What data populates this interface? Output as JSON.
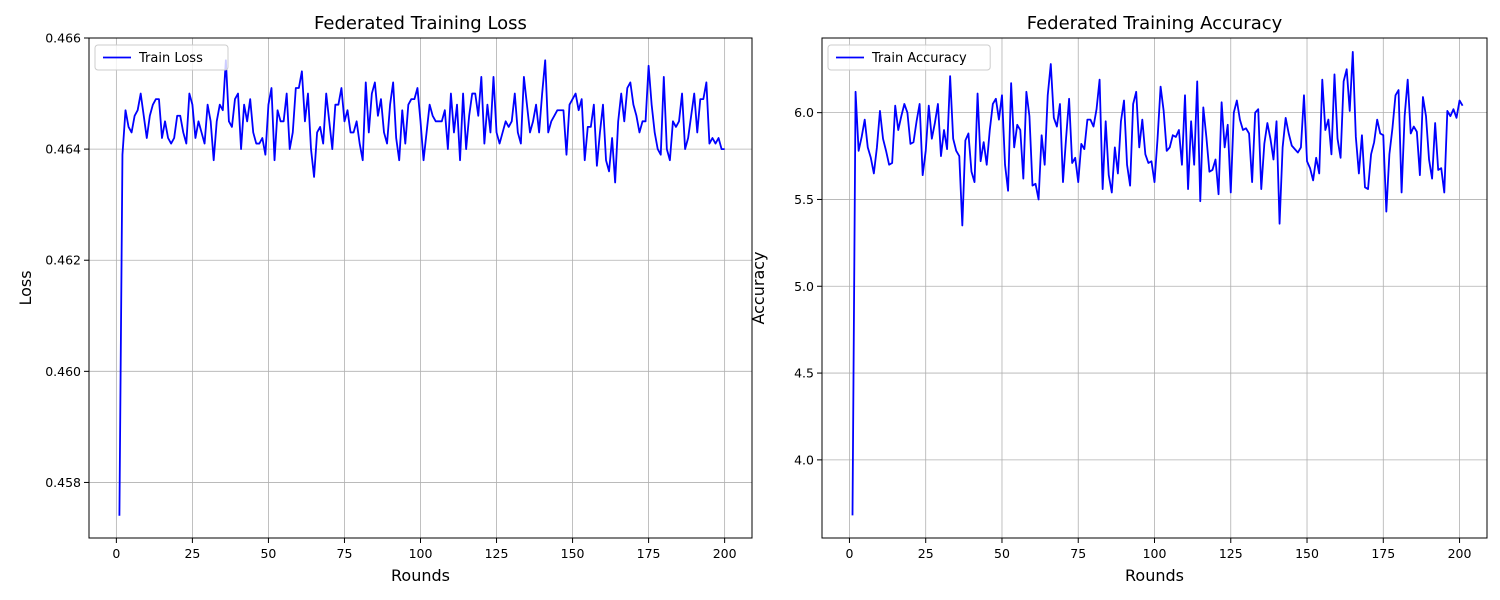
{
  "chart_data": [
    {
      "type": "line",
      "title": "Federated Training Loss",
      "xlabel": "Rounds",
      "ylabel": "Loss",
      "xlim": [
        -9,
        209
      ],
      "ylim": [
        0.457,
        0.466
      ],
      "xticks": [
        0,
        25,
        50,
        75,
        100,
        125,
        150,
        175,
        200
      ],
      "yticks": [
        0.458,
        0.46,
        0.462,
        0.464,
        0.466
      ],
      "ytick_decimals": 3,
      "grid": true,
      "legend_position": "upper-left",
      "x_start": 1,
      "series": [
        {
          "name": "Train Loss",
          "color": "#0000ff",
          "values": [
            0.4574,
            0.4639,
            0.4647,
            0.4644,
            0.4643,
            0.4646,
            0.4647,
            0.465,
            0.4646,
            0.4642,
            0.4646,
            0.4648,
            0.4649,
            0.4649,
            0.4642,
            0.4645,
            0.4642,
            0.4641,
            0.4642,
            0.4646,
            0.4646,
            0.4643,
            0.4641,
            0.465,
            0.4648,
            0.4642,
            0.4645,
            0.4643,
            0.4641,
            0.4648,
            0.4645,
            0.4638,
            0.4645,
            0.4648,
            0.4647,
            0.4656,
            0.4645,
            0.4644,
            0.4649,
            0.465,
            0.464,
            0.4648,
            0.4645,
            0.4649,
            0.4643,
            0.4641,
            0.4641,
            0.4642,
            0.4639,
            0.4648,
            0.4651,
            0.4638,
            0.4647,
            0.4645,
            0.4645,
            0.465,
            0.464,
            0.4643,
            0.4651,
            0.4651,
            0.4654,
            0.4645,
            0.465,
            0.464,
            0.4635,
            0.4643,
            0.4644,
            0.4641,
            0.465,
            0.4645,
            0.464,
            0.4648,
            0.4648,
            0.4651,
            0.4645,
            0.4647,
            0.4643,
            0.4643,
            0.4645,
            0.4641,
            0.4638,
            0.4652,
            0.4643,
            0.465,
            0.4652,
            0.4646,
            0.4649,
            0.4643,
            0.4641,
            0.4648,
            0.4652,
            0.4642,
            0.4638,
            0.4647,
            0.4641,
            0.4648,
            0.4649,
            0.4649,
            0.4651,
            0.4645,
            0.4638,
            0.4643,
            0.4648,
            0.4646,
            0.4645,
            0.4645,
            0.4645,
            0.4647,
            0.464,
            0.465,
            0.4643,
            0.4648,
            0.4638,
            0.465,
            0.464,
            0.4646,
            0.465,
            0.465,
            0.4646,
            0.4653,
            0.4641,
            0.4648,
            0.4643,
            0.4653,
            0.4643,
            0.4641,
            0.4643,
            0.4645,
            0.4644,
            0.4645,
            0.465,
            0.4643,
            0.4641,
            0.4653,
            0.4648,
            0.4643,
            0.4645,
            0.4648,
            0.4643,
            0.465,
            0.4656,
            0.4643,
            0.4645,
            0.4646,
            0.4647,
            0.4647,
            0.4647,
            0.4639,
            0.4648,
            0.4649,
            0.465,
            0.4647,
            0.4649,
            0.4638,
            0.4644,
            0.4644,
            0.4648,
            0.4637,
            0.4643,
            0.4648,
            0.4638,
            0.4636,
            0.4642,
            0.4634,
            0.4645,
            0.465,
            0.4645,
            0.4651,
            0.4652,
            0.4648,
            0.4646,
            0.4643,
            0.4645,
            0.4645,
            0.4655,
            0.4648,
            0.4643,
            0.464,
            0.4639,
            0.4653,
            0.464,
            0.4638,
            0.4645,
            0.4644,
            0.4645,
            0.465,
            0.464,
            0.4642,
            0.4646,
            0.465,
            0.4643,
            0.4649,
            0.4649,
            0.4652,
            0.4641,
            0.4642,
            0.4641,
            0.4642,
            0.464,
            0.464
          ]
        }
      ]
    },
    {
      "type": "line",
      "title": "Federated Training Accuracy",
      "xlabel": "Rounds",
      "ylabel": "Accuracy",
      "xlim": [
        -9,
        209
      ],
      "ylim": [
        3.55,
        6.43
      ],
      "xticks": [
        0,
        25,
        50,
        75,
        100,
        125,
        150,
        175,
        200
      ],
      "yticks": [
        4.0,
        4.5,
        5.0,
        5.5,
        6.0
      ],
      "ytick_decimals": 1,
      "grid": true,
      "legend_position": "upper-left",
      "x_start": 1,
      "series": [
        {
          "name": "Train Accuracy",
          "color": "#0000ff",
          "values": [
            3.68,
            6.12,
            5.78,
            5.86,
            5.96,
            5.8,
            5.74,
            5.65,
            5.8,
            6.01,
            5.85,
            5.78,
            5.7,
            5.71,
            6.04,
            5.9,
            5.98,
            6.05,
            6.0,
            5.82,
            5.83,
            5.95,
            6.05,
            5.64,
            5.78,
            6.04,
            5.85,
            5.94,
            6.05,
            5.75,
            5.9,
            5.79,
            6.21,
            5.85,
            5.78,
            5.75,
            5.35,
            5.84,
            5.88,
            5.66,
            5.6,
            6.11,
            5.72,
            5.83,
            5.7,
            5.9,
            6.05,
            6.08,
            5.96,
            6.1,
            5.7,
            5.55,
            6.17,
            5.8,
            5.93,
            5.9,
            5.62,
            6.12,
            5.98,
            5.58,
            5.59,
            5.5,
            5.87,
            5.7,
            6.1,
            6.28,
            5.97,
            5.92,
            6.05,
            5.6,
            5.85,
            6.08,
            5.71,
            5.74,
            5.6,
            5.82,
            5.79,
            5.96,
            5.96,
            5.92,
            6.02,
            6.19,
            5.56,
            5.95,
            5.64,
            5.54,
            5.8,
            5.65,
            5.95,
            6.07,
            5.7,
            5.58,
            6.05,
            6.12,
            5.8,
            5.96,
            5.76,
            5.71,
            5.72,
            5.6,
            5.85,
            6.15,
            6.01,
            5.78,
            5.8,
            5.87,
            5.86,
            5.9,
            5.7,
            6.1,
            5.56,
            5.95,
            5.7,
            6.18,
            5.49,
            6.03,
            5.86,
            5.66,
            5.67,
            5.73,
            5.53,
            6.06,
            5.8,
            5.93,
            5.54,
            6.0,
            6.07,
            5.96,
            5.9,
            5.91,
            5.88,
            5.6,
            6.0,
            6.02,
            5.56,
            5.82,
            5.94,
            5.85,
            5.73,
            5.95,
            5.36,
            5.8,
            5.97,
            5.88,
            5.81,
            5.79,
            5.77,
            5.8,
            6.1,
            5.72,
            5.68,
            5.61,
            5.74,
            5.65,
            6.19,
            5.9,
            5.96,
            5.76,
            6.22,
            5.85,
            5.74,
            6.18,
            6.25,
            6.01,
            6.35,
            5.86,
            5.65,
            5.87,
            5.57,
            5.56,
            5.76,
            5.83,
            5.96,
            5.88,
            5.87,
            5.43,
            5.76,
            5.91,
            6.1,
            6.13,
            5.54,
            5.98,
            6.19,
            5.88,
            5.92,
            5.89,
            5.64,
            6.09,
            5.98,
            5.73,
            5.62,
            5.94,
            5.67,
            5.68,
            5.54,
            6.01,
            5.98,
            6.02,
            5.97,
            6.07,
            6.04
          ]
        }
      ]
    }
  ]
}
